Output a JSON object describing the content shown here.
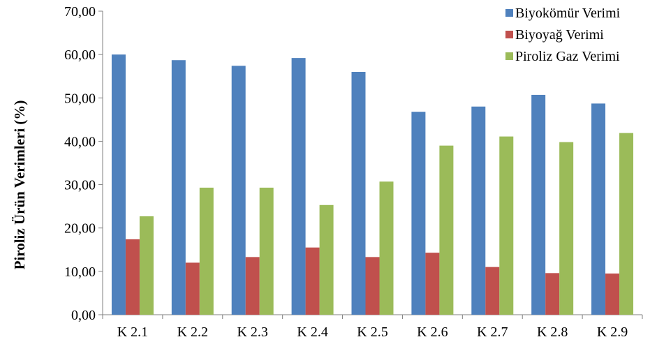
{
  "chart_data": {
    "type": "bar",
    "title": "",
    "xlabel": "",
    "ylabel": "Piroliz Ürün Verimleri (%)",
    "ylim": [
      0,
      70
    ],
    "yticks": [
      "0,00",
      "10,00",
      "20,00",
      "30,00",
      "40,00",
      "50,00",
      "60,00",
      "70,00"
    ],
    "grid": false,
    "legend_position": "top-right",
    "categories": [
      "K 2.1",
      "K 2.2",
      "K 2.3",
      "K 2.4",
      "K 2.5",
      "K 2.6",
      "K 2.7",
      "K 2.8",
      "K 2.9"
    ],
    "series": [
      {
        "name": "Biyokömür Verimi",
        "color": "#4F81BD",
        "values": [
          60.0,
          58.7,
          57.4,
          59.2,
          56.0,
          46.8,
          48.0,
          50.7,
          48.7
        ]
      },
      {
        "name": "Biyoyağ Verimi",
        "color": "#C0504D",
        "values": [
          17.4,
          12.0,
          13.3,
          15.5,
          13.3,
          14.3,
          11.0,
          9.6,
          9.5
        ]
      },
      {
        "name": "Piroliz Gaz Verimi",
        "color": "#9BBB59",
        "values": [
          22.7,
          29.3,
          29.3,
          25.3,
          30.7,
          39.0,
          41.1,
          39.8,
          41.9
        ]
      }
    ]
  }
}
